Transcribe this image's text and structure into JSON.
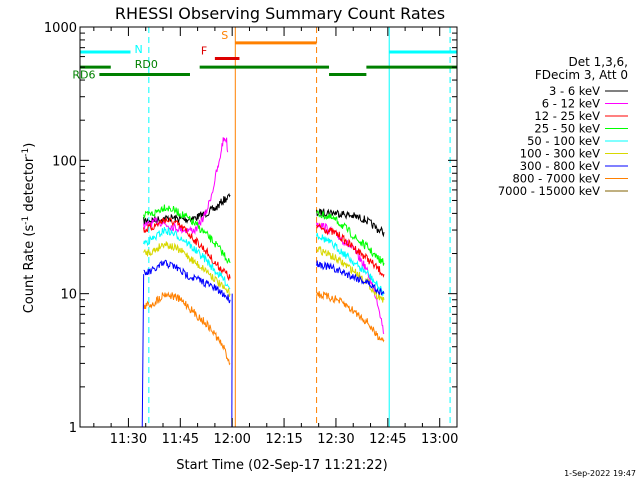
{
  "chart_data": {
    "type": "line",
    "title": "RHESSI Observing Summary Count Rates",
    "xlabel": "Start Time (02-Sep-17 11:21:22)",
    "ylabel_main": "Count Rate (s",
    "ylabel_sup1": "-1",
    "ylabel_mid": " detector",
    "ylabel_sup2": "-1",
    "ylabel_end": ")",
    "y_scale": "log",
    "ylim": [
      1,
      1000
    ],
    "xlim_minutes": [
      -5.4,
      103.6
    ],
    "x_ticks": [
      {
        "label": "11:30",
        "minutes": 8.6
      },
      {
        "label": "11:45",
        "minutes": 23.6
      },
      {
        "label": "12:00",
        "minutes": 38.6
      },
      {
        "label": "12:15",
        "minutes": 53.6
      },
      {
        "label": "12:30",
        "minutes": 68.6
      },
      {
        "label": "12:45",
        "minutes": 83.6
      },
      {
        "label": "13:00",
        "minutes": 98.6
      }
    ],
    "y_ticks": [
      {
        "label": "1",
        "value": 1
      },
      {
        "label": "10",
        "value": 10
      },
      {
        "label": "100",
        "value": 100
      },
      {
        "label": "1000",
        "value": 1000
      }
    ],
    "legend_header": [
      "Det 1,3,6,",
      "FDecim 3, Att 0"
    ],
    "legend_placement": "right",
    "series": [
      {
        "name": "3 - 6 keV",
        "color": "#000000",
        "seg1": [
          [
            13,
            35
          ],
          [
            17,
            36
          ],
          [
            21,
            37
          ],
          [
            25,
            36
          ],
          [
            28,
            37
          ],
          [
            31,
            40
          ],
          [
            34,
            44
          ],
          [
            36,
            50
          ],
          [
            37.5,
            53
          ],
          [
            38,
            55
          ]
        ],
        "seg2": [
          [
            63,
            40
          ],
          [
            66,
            41
          ],
          [
            70,
            40
          ],
          [
            74,
            38
          ],
          [
            77,
            36
          ],
          [
            79,
            33
          ],
          [
            81,
            30
          ],
          [
            82.5,
            29
          ]
        ]
      },
      {
        "name": "6 - 12 keV",
        "color": "#ff00ff",
        "seg1": [
          [
            13,
            32
          ],
          [
            17,
            35
          ],
          [
            21,
            32
          ],
          [
            25,
            30
          ],
          [
            28,
            30
          ],
          [
            31,
            40
          ],
          [
            33,
            60
          ],
          [
            34,
            80
          ],
          [
            35,
            98
          ],
          [
            35.5,
            125
          ],
          [
            36,
            140
          ],
          [
            36.5,
            148
          ],
          [
            37,
            140
          ],
          [
            37.3,
            115
          ]
        ],
        "seg2": [
          [
            63,
            34
          ],
          [
            66,
            31
          ],
          [
            70,
            26
          ],
          [
            74,
            21
          ],
          [
            77,
            16
          ],
          [
            79,
            12
          ],
          [
            81,
            8
          ],
          [
            82.5,
            5
          ]
        ]
      },
      {
        "name": "12 - 25 keV",
        "color": "#ff0000",
        "seg1": [
          [
            13,
            30
          ],
          [
            16,
            32
          ],
          [
            19,
            36
          ],
          [
            22,
            34
          ],
          [
            25,
            30
          ],
          [
            28,
            25
          ],
          [
            31,
            21
          ],
          [
            33.5,
            17
          ],
          [
            36,
            15
          ],
          [
            38,
            13
          ]
        ],
        "seg2": [
          [
            63,
            32
          ],
          [
            66,
            30
          ],
          [
            69,
            28
          ],
          [
            72,
            24
          ],
          [
            75,
            21
          ],
          [
            78,
            18
          ],
          [
            80,
            16
          ],
          [
            82.5,
            14
          ]
        ]
      },
      {
        "name": "25 - 50 keV",
        "color": "#00ff00",
        "seg1": [
          [
            13,
            38
          ],
          [
            16,
            40
          ],
          [
            19,
            45
          ],
          [
            22,
            42
          ],
          [
            25,
            38
          ],
          [
            28,
            33
          ],
          [
            31,
            28
          ],
          [
            33.5,
            24
          ],
          [
            36,
            20
          ],
          [
            38,
            17
          ]
        ],
        "seg2": [
          [
            63,
            40
          ],
          [
            66,
            38
          ],
          [
            69,
            35
          ],
          [
            72,
            30
          ],
          [
            75,
            25
          ],
          [
            78,
            22
          ],
          [
            80,
            19
          ],
          [
            82.5,
            17
          ]
        ]
      },
      {
        "name": "50 - 100 keV",
        "color": "#00ffff",
        "seg1": [
          [
            13,
            24
          ],
          [
            16,
            26
          ],
          [
            19,
            30
          ],
          [
            22,
            28
          ],
          [
            25,
            25
          ],
          [
            28,
            21
          ],
          [
            31,
            18
          ],
          [
            33.5,
            15
          ],
          [
            36,
            13
          ],
          [
            38,
            11
          ]
        ],
        "seg2": [
          [
            63,
            28
          ],
          [
            66,
            25
          ],
          [
            69,
            22
          ],
          [
            72,
            19
          ],
          [
            75,
            16
          ],
          [
            78,
            14
          ],
          [
            80,
            12
          ],
          [
            82.5,
            10
          ]
        ]
      },
      {
        "name": "100 - 300 keV",
        "color": "#d8d800",
        "seg1": [
          [
            13,
            20
          ],
          [
            16,
            21
          ],
          [
            19,
            24
          ],
          [
            22,
            22
          ],
          [
            25,
            20
          ],
          [
            28,
            17
          ],
          [
            31,
            15
          ],
          [
            33.5,
            13
          ],
          [
            36,
            11
          ],
          [
            38,
            10
          ]
        ],
        "seg2": [
          [
            63,
            22
          ],
          [
            66,
            20
          ],
          [
            69,
            18
          ],
          [
            72,
            16
          ],
          [
            75,
            14
          ],
          [
            78,
            12
          ],
          [
            80,
            10
          ],
          [
            82.5,
            9
          ]
        ]
      },
      {
        "name": "300 - 800 keV",
        "color": "#0000ff",
        "seg1": [
          [
            13,
            14
          ],
          [
            16,
            15
          ],
          [
            19,
            17
          ],
          [
            22,
            16
          ],
          [
            25,
            14
          ],
          [
            28,
            13
          ],
          [
            31,
            12
          ],
          [
            33.5,
            11
          ],
          [
            36,
            10
          ],
          [
            38,
            9
          ]
        ],
        "seg2": [
          [
            63,
            17
          ],
          [
            66,
            16
          ],
          [
            69,
            15
          ],
          [
            72,
            14
          ],
          [
            75,
            13
          ],
          [
            78,
            12
          ],
          [
            80,
            11
          ],
          [
            82.5,
            10
          ]
        ]
      },
      {
        "name": "800 - 7000 keV",
        "color": "#ff8000",
        "seg1": [
          [
            13,
            8
          ],
          [
            16,
            8.5
          ],
          [
            19,
            10
          ],
          [
            22,
            9.5
          ],
          [
            25,
            8.5
          ],
          [
            28,
            7
          ],
          [
            31,
            6
          ],
          [
            33.5,
            5
          ],
          [
            36,
            4
          ],
          [
            38,
            3
          ]
        ],
        "seg2": [
          [
            63,
            10
          ],
          [
            66,
            9.5
          ],
          [
            69,
            9
          ],
          [
            72,
            8
          ],
          [
            75,
            7
          ],
          [
            78,
            6
          ],
          [
            80,
            5
          ],
          [
            82.5,
            4.5
          ]
        ]
      },
      {
        "name": "7000 - 15000 keV",
        "color": "#806000",
        "seg1": [],
        "seg2": []
      }
    ],
    "flags": [
      {
        "label": "N",
        "color": "#00ffff",
        "y_value": 650,
        "segments": [
          [
            -5.4,
            9.2
          ],
          [
            84,
            103.6
          ]
        ]
      },
      {
        "label": "RD0",
        "color": "#008000",
        "y_value": 500,
        "segments": [
          [
            -5.4,
            3.5
          ],
          [
            29.2,
            66.6
          ],
          [
            77.4,
            103.6
          ]
        ]
      },
      {
        "label": "RD6",
        "color": "#008000",
        "y_value": 440,
        "segments": [
          [
            0.2,
            26.4
          ],
          [
            66.6,
            77.4
          ]
        ]
      },
      {
        "label": "F",
        "color": "#dd0000",
        "y_value": 580,
        "segments": [
          [
            33.6,
            40.7
          ]
        ]
      },
      {
        "label": "S",
        "color": "#ff8000",
        "y_value": 760,
        "segments": [
          [
            39.5,
            63
          ]
        ]
      }
    ],
    "vlines": [
      {
        "minutes": -5.4,
        "color": "#00ffff",
        "dashed": false
      },
      {
        "minutes": 14.5,
        "color": "#00ffff",
        "dashed": true
      },
      {
        "minutes": 39.5,
        "color": "#ff8000",
        "dashed": false
      },
      {
        "minutes": 63,
        "color": "#ff8000",
        "dashed": true
      },
      {
        "minutes": 84,
        "color": "#00ffff",
        "dashed": false
      },
      {
        "minutes": 101.6,
        "color": "#00ffff",
        "dashed": true
      }
    ],
    "blue_drops": [
      {
        "from_minutes": 12.6,
        "to_minutes": 13,
        "top_value": 14
      },
      {
        "from_minutes": 38.5,
        "to_minutes": 38.6,
        "top_value": 10
      }
    ],
    "grid": false
  },
  "footer": {
    "date": "1-Sep-2022 19:47"
  }
}
